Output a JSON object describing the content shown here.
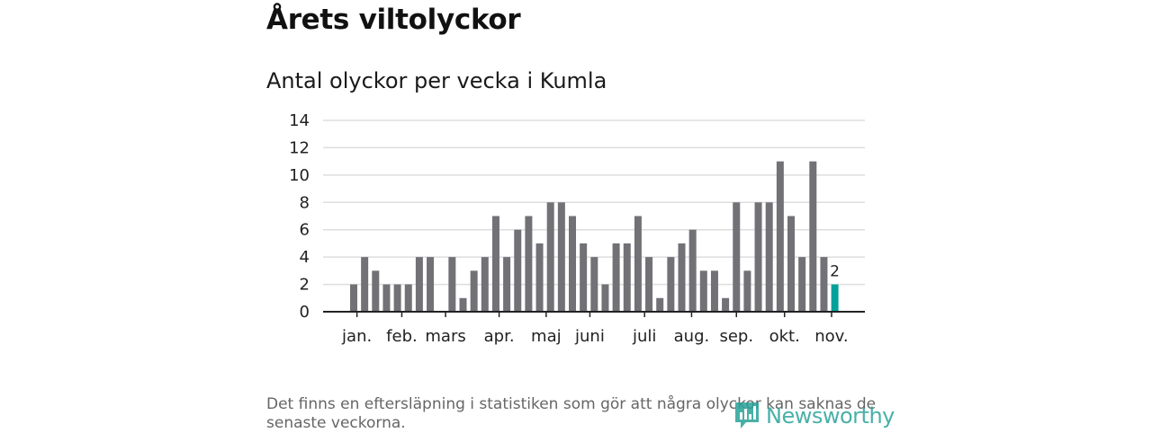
{
  "title": "Årets viltolyckor",
  "subtitle": "Antal olyckor per vecka i Kumla",
  "footnote": "Det finns en eftersläpning i statistiken som gör att några olyckor kan saknas de senaste veckorna.",
  "logo": {
    "text": "Newsworthy",
    "icon": "newsworthy-logo-icon",
    "color": "#2aa39a"
  },
  "chart_data": {
    "type": "bar",
    "title": "Antal olyckor per vecka i Kumla",
    "xlabel": "",
    "ylabel": "",
    "ylim": [
      0,
      14
    ],
    "yticks": [
      0,
      2,
      4,
      6,
      8,
      10,
      12,
      14
    ],
    "grid": true,
    "values": [
      2,
      4,
      3,
      2,
      2,
      2,
      4,
      4,
      0,
      4,
      1,
      3,
      4,
      7,
      4,
      6,
      7,
      5,
      8,
      8,
      7,
      5,
      4,
      2,
      5,
      5,
      7,
      4,
      1,
      4,
      5,
      6,
      3,
      3,
      1,
      8,
      3,
      8,
      8,
      11,
      7,
      4,
      11,
      4,
      2
    ],
    "highlight_index": 44,
    "highlight_label": "2",
    "colors": {
      "bar": "#727176",
      "highlight": "#00a19a",
      "grid": "#dddddd",
      "axis": "#222222"
    },
    "months": [
      {
        "label": "jan.",
        "week": 0.3
      },
      {
        "label": "feb.",
        "week": 4.4
      },
      {
        "label": "mars",
        "week": 8.4
      },
      {
        "label": "apr.",
        "week": 13.3
      },
      {
        "label": "maj",
        "week": 17.6
      },
      {
        "label": "juni",
        "week": 21.6
      },
      {
        "label": "juli",
        "week": 26.6
      },
      {
        "label": "aug.",
        "week": 30.9
      },
      {
        "label": "sep.",
        "week": 35.0
      },
      {
        "label": "okt.",
        "week": 39.4
      },
      {
        "label": "nov.",
        "week": 43.7
      }
    ]
  }
}
